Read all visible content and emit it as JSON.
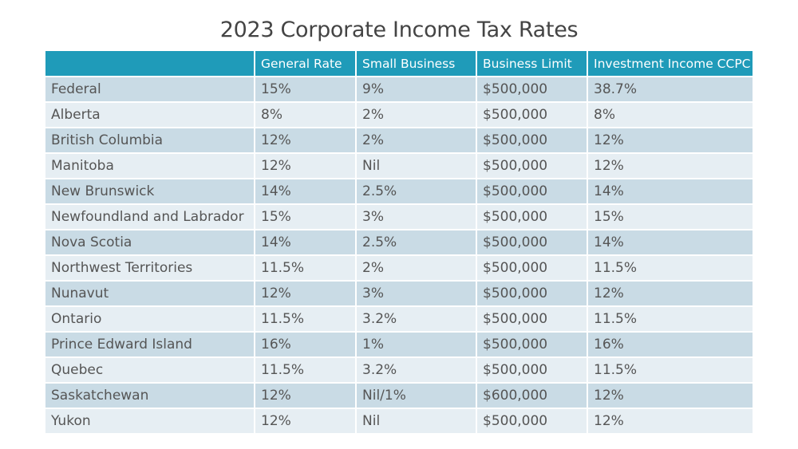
{
  "chart_data": {
    "type": "table",
    "title": "2023 Corporate Income Tax Rates",
    "columns": [
      "",
      "General Rate",
      "Small Business",
      "Business Limit",
      "Investment Income CCPC"
    ],
    "rows": [
      [
        "Federal",
        "15%",
        "9%",
        "$500,000",
        "38.7%"
      ],
      [
        "Alberta",
        "8%",
        "2%",
        "$500,000",
        "8%"
      ],
      [
        "British Columbia",
        "12%",
        "2%",
        "$500,000",
        "12%"
      ],
      [
        "Manitoba",
        "12%",
        "Nil",
        "$500,000",
        "12%"
      ],
      [
        "New Brunswick",
        "14%",
        "2.5%",
        "$500,000",
        "14%"
      ],
      [
        "Newfoundland and Labrador",
        "15%",
        "3%",
        "$500,000",
        "15%"
      ],
      [
        "Nova Scotia",
        "14%",
        "2.5%",
        "$500,000",
        "14%"
      ],
      [
        "Northwest Territories",
        "11.5%",
        "2%",
        "$500,000",
        "11.5%"
      ],
      [
        "Nunavut",
        "12%",
        "3%",
        "$500,000",
        "12%"
      ],
      [
        "Ontario",
        "11.5%",
        "3.2%",
        "$500,000",
        "11.5%"
      ],
      [
        "Prince Edward Island",
        "16%",
        "1%",
        "$500,000",
        "16%"
      ],
      [
        "Quebec",
        "11.5%",
        "3.2%",
        "$500,000",
        "11.5%"
      ],
      [
        "Saskatchewan",
        "12%",
        "Nil/1%",
        "$600,000",
        "12%"
      ],
      [
        "Yukon",
        "12%",
        "Nil",
        "$500,000",
        "12%"
      ]
    ],
    "colors": {
      "header_bg": "#1f9bb9",
      "header_text": "#ffffff",
      "row_odd_bg": "#c9dbe5",
      "row_even_bg": "#e6eef3",
      "cell_text": "#555555",
      "title_text": "#444444"
    }
  }
}
